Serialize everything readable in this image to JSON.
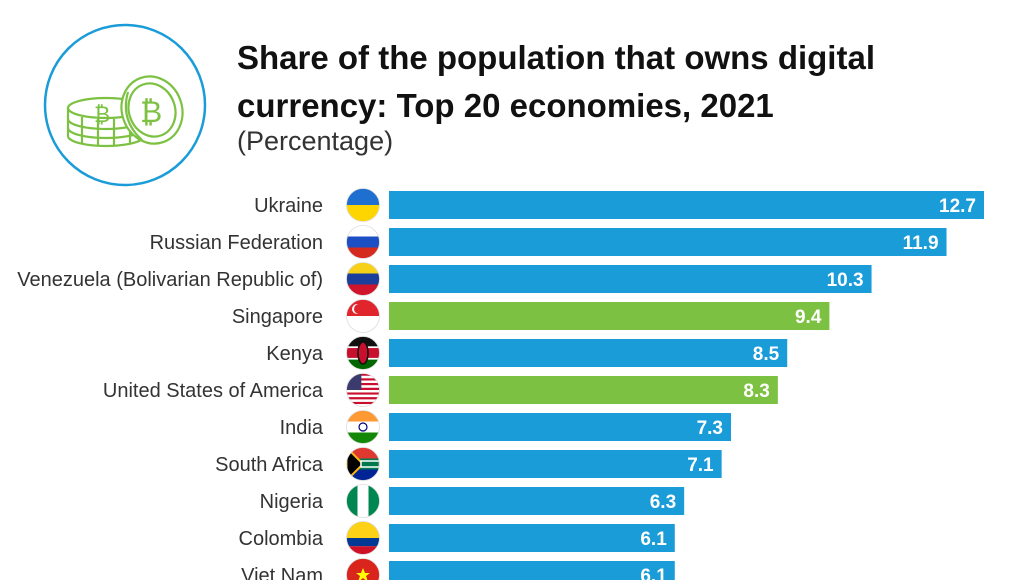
{
  "header": {
    "title": "Share of the population that owns digital currency: Top 20 economies, 2021",
    "subtitle": "(Percentage)"
  },
  "colors": {
    "default_bar": "#1a9cd8",
    "highlight_bar": "#7cc142",
    "icon_stroke": "#7cc142",
    "circle_stroke": "#1a9cd8"
  },
  "icons": {
    "logo": "bitcoin-coins-icon"
  },
  "chart_data": {
    "type": "bar",
    "orientation": "horizontal",
    "title": "Share of the population that owns digital currency: Top 20 economies, 2021",
    "subtitle": "(Percentage)",
    "categories": [
      "Ukraine",
      "Russian Federation",
      "Venezuela (Bolivarian Republic of)",
      "Singapore",
      "Kenya",
      "United States of America",
      "India",
      "South Africa",
      "Nigeria",
      "Colombia",
      "Viet Nam"
    ],
    "values": [
      12.7,
      11.9,
      10.3,
      9.4,
      8.5,
      8.3,
      7.3,
      7.1,
      6.3,
      6.1,
      6.1
    ],
    "value_labels": [
      "12.7",
      "11.9",
      "10.3",
      "9.4",
      "8.5",
      "8.3",
      "7.3",
      "7.1",
      "6.3",
      "6.1",
      "6.1"
    ],
    "highlighted": [
      "Singapore",
      "United States of America"
    ],
    "flags": [
      "ukraine-flag-icon",
      "russia-flag-icon",
      "venezuela-flag-icon",
      "singapore-flag-icon",
      "kenya-flag-icon",
      "usa-flag-icon",
      "india-flag-icon",
      "south-africa-flag-icon",
      "nigeria-flag-icon",
      "colombia-flag-icon",
      "vietnam-flag-icon"
    ],
    "xlim": [
      0,
      12.7
    ],
    "grid": false,
    "legend": "none"
  }
}
